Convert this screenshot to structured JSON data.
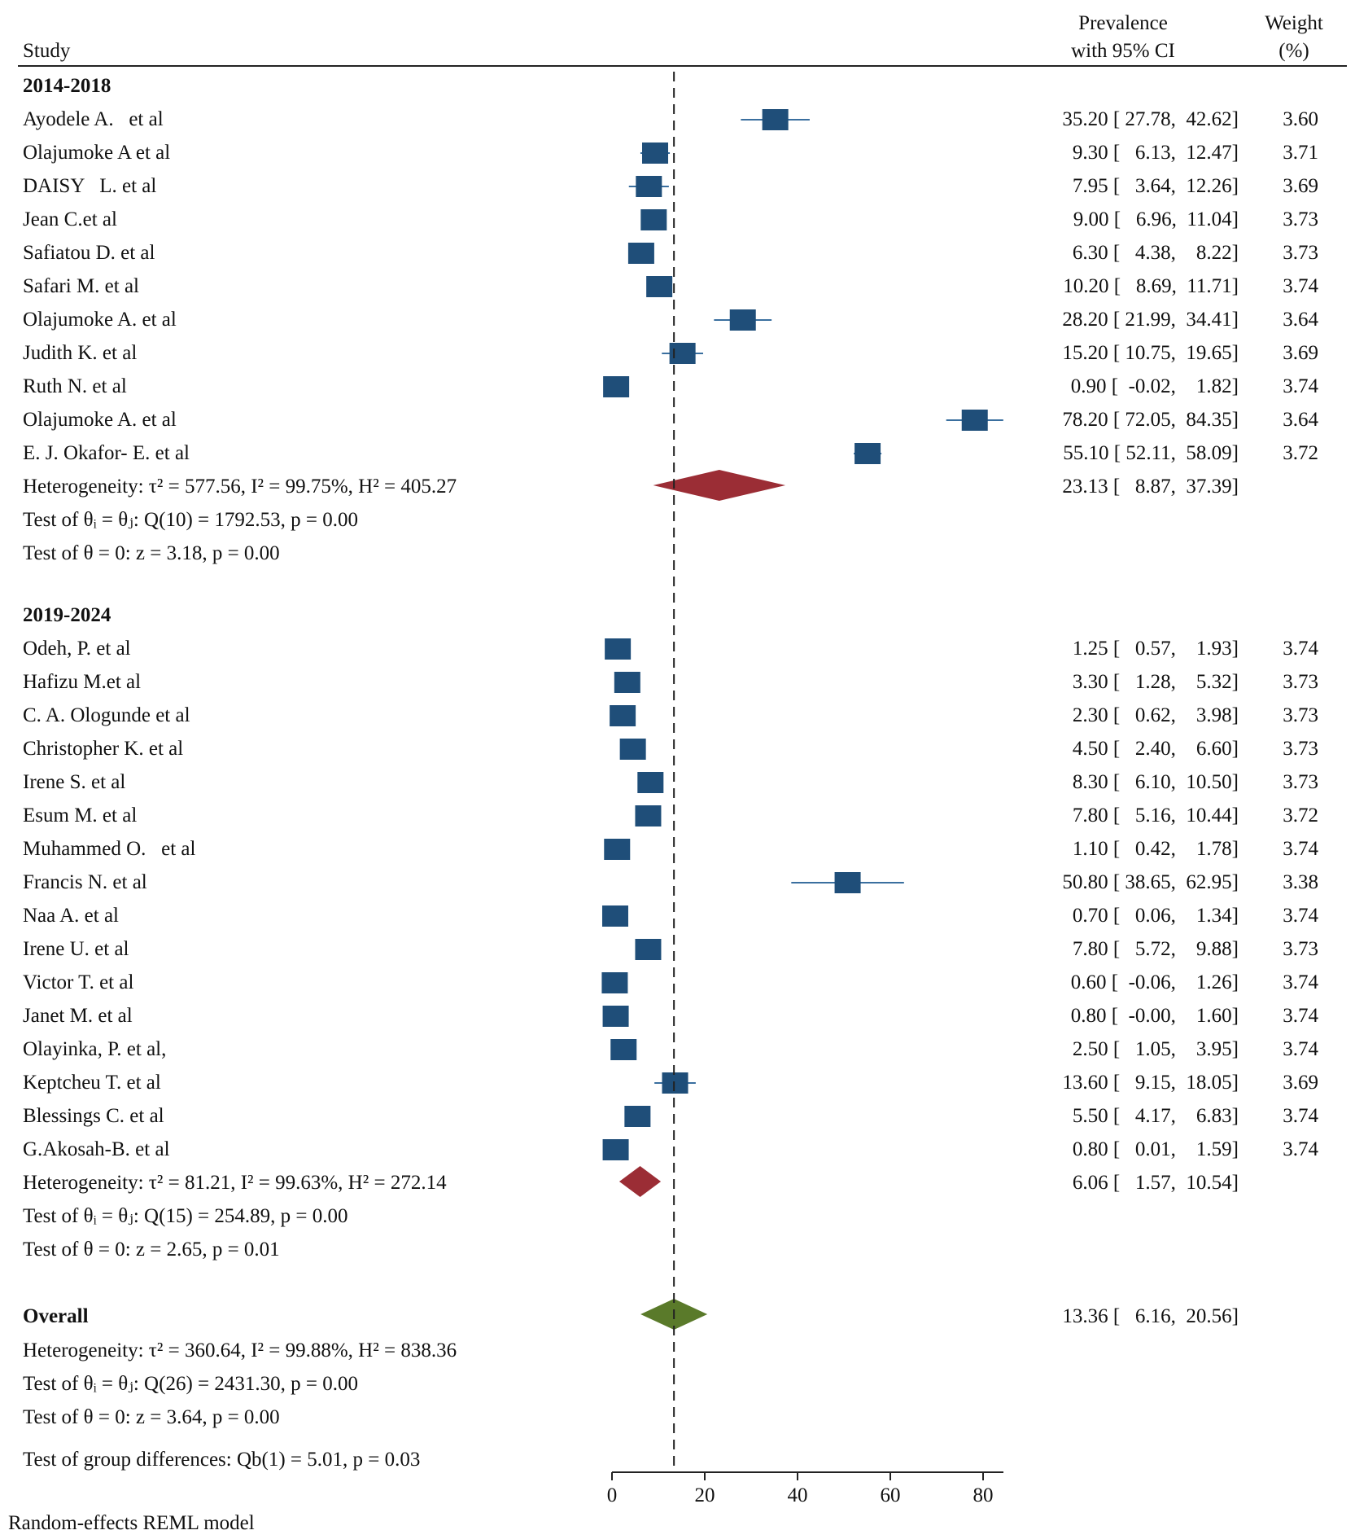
{
  "header": {
    "study": "Study",
    "prevalence_line1": "Prevalence",
    "prevalence_line2": "with 95% CI",
    "weight_line1": "Weight",
    "weight_line2": "(%)"
  },
  "chart_data": {
    "type": "forest",
    "xlim": [
      0,
      80
    ],
    "xticks": [
      "0",
      "20",
      "40",
      "60",
      "80"
    ],
    "xtick_values": [
      0,
      20,
      40,
      60,
      80
    ],
    "reference_line": 13.36,
    "model_note": "Random-effects REML model",
    "colors": {
      "marker": "#1f4e79",
      "group_diamond": "#9b2d35",
      "overall_diamond": "#5a7a2a"
    },
    "groups": [
      {
        "label": "2014-2018",
        "studies": [
          {
            "name": "Ayodele A.   et al",
            "est": 35.2,
            "lo": 27.78,
            "hi": 42.62,
            "ci_text": "35.20 [ 27.78,  42.62]",
            "weight": "3.60"
          },
          {
            "name": "Olajumoke A et al",
            "est": 9.3,
            "lo": 6.13,
            "hi": 12.47,
            "ci_text": "9.30 [   6.13,  12.47]",
            "weight": "3.71"
          },
          {
            "name": "DAISY   L. et al",
            "est": 7.95,
            "lo": 3.64,
            "hi": 12.26,
            "ci_text": "7.95 [   3.64,  12.26]",
            "weight": "3.69"
          },
          {
            "name": "Jean C.et al",
            "est": 9.0,
            "lo": 6.96,
            "hi": 11.04,
            "ci_text": "9.00 [   6.96,  11.04]",
            "weight": "3.73"
          },
          {
            "name": "Safiatou D. et al",
            "est": 6.3,
            "lo": 4.38,
            "hi": 8.22,
            "ci_text": "6.30 [   4.38,    8.22]",
            "weight": "3.73"
          },
          {
            "name": "Safari M. et al",
            "est": 10.2,
            "lo": 8.69,
            "hi": 11.71,
            "ci_text": "10.20 [   8.69,  11.71]",
            "weight": "3.74"
          },
          {
            "name": "Olajumoke A. et al",
            "est": 28.2,
            "lo": 21.99,
            "hi": 34.41,
            "ci_text": "28.20 [ 21.99,  34.41]",
            "weight": "3.64"
          },
          {
            "name": "Judith K. et al",
            "est": 15.2,
            "lo": 10.75,
            "hi": 19.65,
            "ci_text": "15.20 [ 10.75,  19.65]",
            "weight": "3.69"
          },
          {
            "name": "Ruth N. et al",
            "est": 0.9,
            "lo": -0.02,
            "hi": 1.82,
            "ci_text": "0.90 [  -0.02,    1.82]",
            "weight": "3.74"
          },
          {
            "name": "Olajumoke A. et al",
            "est": 78.2,
            "lo": 72.05,
            "hi": 84.35,
            "ci_text": "78.20 [ 72.05,  84.35]",
            "weight": "3.64"
          },
          {
            "name": "E. J. Okafor- E. et al",
            "est": 55.1,
            "lo": 52.11,
            "hi": 58.09,
            "ci_text": "55.10 [ 52.11,  58.09]",
            "weight": "3.72"
          }
        ],
        "summary": {
          "est": 23.13,
          "lo": 8.87,
          "hi": 37.39,
          "ci_text": "23.13 [   8.87,  37.39]"
        },
        "heterogeneity": "Heterogeneity: τ² = 577.56, I² = 99.75%, H² = 405.27",
        "test_q": "Test of θᵢ = θⱼ: Q(10) = 1792.53, p = 0.00",
        "test_z": "Test of θ = 0: z = 3.18, p = 0.00"
      },
      {
        "label": "2019-2024",
        "studies": [
          {
            "name": "Odeh, P. et al",
            "est": 1.25,
            "lo": 0.57,
            "hi": 1.93,
            "ci_text": "1.25 [   0.57,    1.93]",
            "weight": "3.74"
          },
          {
            "name": "Hafizu M.et al",
            "est": 3.3,
            "lo": 1.28,
            "hi": 5.32,
            "ci_text": "3.30 [   1.28,    5.32]",
            "weight": "3.73"
          },
          {
            "name": "C. A. Ologunde et al",
            "est": 2.3,
            "lo": 0.62,
            "hi": 3.98,
            "ci_text": "2.30 [   0.62,    3.98]",
            "weight": "3.73"
          },
          {
            "name": "Christopher K. et al",
            "est": 4.5,
            "lo": 2.4,
            "hi": 6.6,
            "ci_text": "4.50 [   2.40,    6.60]",
            "weight": "3.73"
          },
          {
            "name": "Irene S. et al",
            "est": 8.3,
            "lo": 6.1,
            "hi": 10.5,
            "ci_text": "8.30 [   6.10,  10.50]",
            "weight": "3.73"
          },
          {
            "name": "Esum M. et al",
            "est": 7.8,
            "lo": 5.16,
            "hi": 10.44,
            "ci_text": "7.80 [   5.16,  10.44]",
            "weight": "3.72"
          },
          {
            "name": "Muhammed O.   et al",
            "est": 1.1,
            "lo": 0.42,
            "hi": 1.78,
            "ci_text": "1.10 [   0.42,    1.78]",
            "weight": "3.74"
          },
          {
            "name": "Francis N. et al",
            "est": 50.8,
            "lo": 38.65,
            "hi": 62.95,
            "ci_text": "50.80 [ 38.65,  62.95]",
            "weight": "3.38"
          },
          {
            "name": "Naa A. et al",
            "est": 0.7,
            "lo": 0.06,
            "hi": 1.34,
            "ci_text": "0.70 [   0.06,    1.34]",
            "weight": "3.74"
          },
          {
            "name": "Irene U. et al",
            "est": 7.8,
            "lo": 5.72,
            "hi": 9.88,
            "ci_text": "7.80 [   5.72,    9.88]",
            "weight": "3.73"
          },
          {
            "name": "Victor T. et al",
            "est": 0.6,
            "lo": -0.06,
            "hi": 1.26,
            "ci_text": "0.60 [  -0.06,    1.26]",
            "weight": "3.74"
          },
          {
            "name": "Janet M. et al",
            "est": 0.8,
            "lo": -0.0,
            "hi": 1.6,
            "ci_text": "0.80 [  -0.00,    1.60]",
            "weight": "3.74"
          },
          {
            "name": "Olayinka, P. et al,",
            "est": 2.5,
            "lo": 1.05,
            "hi": 3.95,
            "ci_text": "2.50 [   1.05,    3.95]",
            "weight": "3.74"
          },
          {
            "name": "Keptcheu T. et al",
            "est": 13.6,
            "lo": 9.15,
            "hi": 18.05,
            "ci_text": "13.60 [   9.15,  18.05]",
            "weight": "3.69"
          },
          {
            "name": "Blessings C. et al",
            "est": 5.5,
            "lo": 4.17,
            "hi": 6.83,
            "ci_text": "5.50 [   4.17,    6.83]",
            "weight": "3.74"
          },
          {
            "name": "G.Akosah-B. et al",
            "est": 0.8,
            "lo": 0.01,
            "hi": 1.59,
            "ci_text": "0.80 [   0.01,    1.59]",
            "weight": "3.74"
          }
        ],
        "summary": {
          "est": 6.06,
          "lo": 1.57,
          "hi": 10.54,
          "ci_text": "6.06 [   1.57,  10.54]"
        },
        "heterogeneity": "Heterogeneity: τ² = 81.21, I² = 99.63%, H² = 272.14",
        "test_q": "Test of θᵢ = θⱼ: Q(15) = 254.89, p = 0.00",
        "test_z": "Test of θ = 0: z = 2.65, p = 0.01"
      }
    ],
    "overall": {
      "label": "Overall",
      "est": 13.36,
      "lo": 6.16,
      "hi": 20.56,
      "ci_text": "13.36 [   6.16,  20.56]",
      "heterogeneity": "Heterogeneity: τ² = 360.64, I² = 99.88%, H² = 838.36",
      "test_q": "Test of θᵢ = θⱼ: Q(26) = 2431.30, p = 0.00",
      "test_z": "Test of θ = 0: z = 3.64, p = 0.00"
    },
    "group_test": "Test of group differences: Qb(1) = 5.01, p = 0.03"
  }
}
